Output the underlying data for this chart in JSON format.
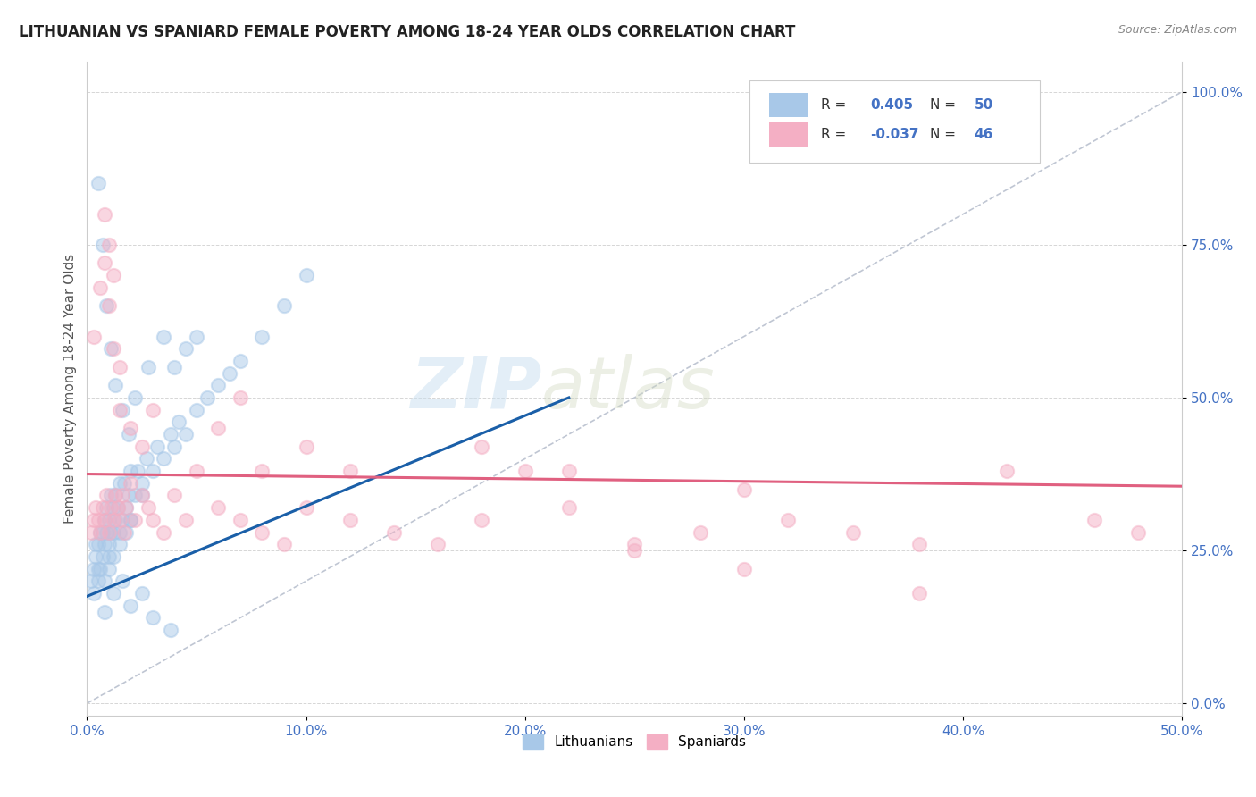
{
  "title": "LITHUANIAN VS SPANIARD FEMALE POVERTY AMONG 18-24 YEAR OLDS CORRELATION CHART",
  "source": "Source: ZipAtlas.com",
  "ylabel": "Female Poverty Among 18-24 Year Olds",
  "xlim": [
    0,
    0.5
  ],
  "ylim": [
    -0.02,
    1.05
  ],
  "xtick_positions": [
    0.0,
    0.1,
    0.2,
    0.3,
    0.4,
    0.5
  ],
  "xtick_labels": [
    "0.0%",
    "10.0%",
    "20.0%",
    "30.0%",
    "40.0%",
    "50.0%"
  ],
  "ytick_positions": [
    0.0,
    0.25,
    0.5,
    0.75,
    1.0
  ],
  "ytick_labels": [
    "0.0%",
    "25.0%",
    "50.0%",
    "75.0%",
    "100.0%"
  ],
  "legend_R_blue": "0.405",
  "legend_N_blue": "50",
  "legend_R_pink": "-0.037",
  "legend_N_pink": "46",
  "blue_color": "#a8c8e8",
  "pink_color": "#f4afc4",
  "blue_line_color": "#1a5fa8",
  "pink_line_color": "#e06080",
  "ref_line_color": "#b0b8c8",
  "watermark_color": "#c8dff0",
  "blue_scatter_x": [
    0.002,
    0.003,
    0.004,
    0.004,
    0.005,
    0.005,
    0.006,
    0.007,
    0.007,
    0.008,
    0.008,
    0.009,
    0.009,
    0.01,
    0.01,
    0.01,
    0.011,
    0.011,
    0.012,
    0.012,
    0.013,
    0.013,
    0.014,
    0.015,
    0.015,
    0.016,
    0.017,
    0.018,
    0.019,
    0.02,
    0.02,
    0.022,
    0.023,
    0.025,
    0.027,
    0.03,
    0.032,
    0.035,
    0.038,
    0.04,
    0.042,
    0.045,
    0.05,
    0.055,
    0.06,
    0.065,
    0.07,
    0.08,
    0.09,
    0.1
  ],
  "blue_scatter_y": [
    0.2,
    0.22,
    0.24,
    0.26,
    0.22,
    0.26,
    0.28,
    0.24,
    0.28,
    0.26,
    0.3,
    0.28,
    0.32,
    0.24,
    0.26,
    0.3,
    0.28,
    0.34,
    0.28,
    0.32,
    0.3,
    0.34,
    0.32,
    0.28,
    0.36,
    0.3,
    0.36,
    0.32,
    0.34,
    0.3,
    0.38,
    0.34,
    0.38,
    0.36,
    0.4,
    0.38,
    0.42,
    0.4,
    0.44,
    0.42,
    0.46,
    0.44,
    0.48,
    0.5,
    0.52,
    0.54,
    0.56,
    0.6,
    0.65,
    0.7
  ],
  "blue_scatter_x2": [
    0.003,
    0.005,
    0.006,
    0.008,
    0.01,
    0.012,
    0.015,
    0.018,
    0.02,
    0.025,
    0.005,
    0.007,
    0.009,
    0.011,
    0.013,
    0.016,
    0.019,
    0.022,
    0.028,
    0.035,
    0.04,
    0.045,
    0.05,
    0.008,
    0.012,
    0.016,
    0.02,
    0.025,
    0.03,
    0.038
  ],
  "blue_scatter_y2": [
    0.18,
    0.2,
    0.22,
    0.2,
    0.22,
    0.24,
    0.26,
    0.28,
    0.3,
    0.34,
    0.85,
    0.75,
    0.65,
    0.58,
    0.52,
    0.48,
    0.44,
    0.5,
    0.55,
    0.6,
    0.55,
    0.58,
    0.6,
    0.15,
    0.18,
    0.2,
    0.16,
    0.18,
    0.14,
    0.12
  ],
  "pink_scatter_x": [
    0.002,
    0.003,
    0.004,
    0.005,
    0.006,
    0.007,
    0.008,
    0.009,
    0.01,
    0.011,
    0.012,
    0.013,
    0.014,
    0.015,
    0.016,
    0.017,
    0.018,
    0.02,
    0.022,
    0.025,
    0.028,
    0.03,
    0.035,
    0.04,
    0.045,
    0.05,
    0.06,
    0.07,
    0.08,
    0.09,
    0.1,
    0.12,
    0.14,
    0.16,
    0.18,
    0.2,
    0.22,
    0.25,
    0.28,
    0.3,
    0.32,
    0.35,
    0.38,
    0.42,
    0.46,
    0.48
  ],
  "pink_scatter_y": [
    0.28,
    0.3,
    0.32,
    0.3,
    0.28,
    0.32,
    0.3,
    0.34,
    0.28,
    0.32,
    0.3,
    0.34,
    0.32,
    0.3,
    0.34,
    0.28,
    0.32,
    0.36,
    0.3,
    0.34,
    0.32,
    0.3,
    0.28,
    0.34,
    0.3,
    0.38,
    0.32,
    0.3,
    0.28,
    0.26,
    0.32,
    0.3,
    0.28,
    0.26,
    0.3,
    0.38,
    0.32,
    0.26,
    0.28,
    0.35,
    0.3,
    0.28,
    0.26,
    0.38,
    0.3,
    0.28
  ],
  "pink_scatter_x2": [
    0.003,
    0.006,
    0.008,
    0.01,
    0.012,
    0.015,
    0.008,
    0.01,
    0.012,
    0.015,
    0.02,
    0.025,
    0.03,
    0.08,
    0.1,
    0.12,
    0.18,
    0.22,
    0.25,
    0.3,
    0.38,
    0.06,
    0.07
  ],
  "pink_scatter_y2": [
    0.6,
    0.68,
    0.72,
    0.65,
    0.58,
    0.55,
    0.8,
    0.75,
    0.7,
    0.48,
    0.45,
    0.42,
    0.48,
    0.38,
    0.42,
    0.38,
    0.42,
    0.38,
    0.25,
    0.22,
    0.18,
    0.45,
    0.5
  ],
  "blue_trend_x": [
    0.0,
    0.22
  ],
  "blue_trend_y": [
    0.175,
    0.5
  ],
  "pink_trend_x": [
    0.0,
    0.5
  ],
  "pink_trend_y": [
    0.375,
    0.355
  ]
}
